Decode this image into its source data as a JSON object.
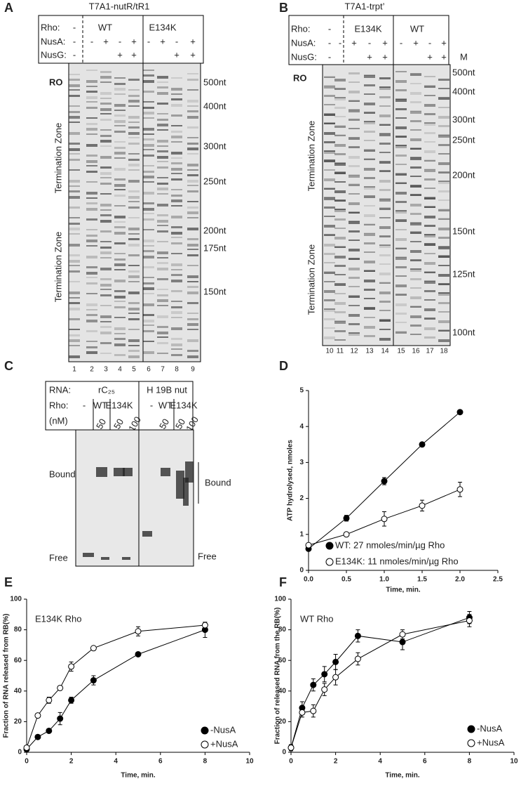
{
  "panels": {
    "A": {
      "letter": "A",
      "title": "T7A1-nutR/tR1",
      "row_labels": [
        "Rho:",
        "NusA:",
        "NusG:"
      ],
      "rho": [
        "-",
        "WT",
        "E134K"
      ],
      "nusa": [
        "-",
        "-",
        "+",
        "-",
        "+",
        "-",
        "+",
        "-",
        "+"
      ],
      "nusg": [
        "-",
        "+",
        "+",
        "+",
        "+"
      ],
      "ro": "RO",
      "zones": [
        "Termination Zone",
        "Termination Zone"
      ],
      "markers": [
        "500nt",
        "400nt",
        "300nt",
        "250nt",
        "200nt",
        "175nt",
        "150nt"
      ],
      "lanes": [
        "1",
        "2",
        "3",
        "4",
        "5",
        "6",
        "7",
        "8",
        "9"
      ]
    },
    "B": {
      "letter": "B",
      "title": "T7A1-trpt’",
      "row_labels": [
        "Rho:",
        "NusA:",
        "NusG:"
      ],
      "rho": [
        "-",
        "E134K",
        "WT"
      ],
      "nusa": [
        "-",
        "-",
        "+",
        "-",
        "+",
        "-",
        "+",
        "-",
        "+"
      ],
      "nusg": [
        "-",
        "+",
        "+",
        "+",
        "+"
      ],
      "m": "M",
      "ro": "RO",
      "zones": [
        "Termination Zone",
        "Termination Zone"
      ],
      "markers": [
        "500nt",
        "400nt",
        "300nt",
        "250nt",
        "200nt",
        "150nt",
        "125nt",
        "100nt"
      ],
      "lanes": [
        "10",
        "11",
        "12",
        "13",
        "14",
        "15",
        "16",
        "17",
        "18"
      ]
    },
    "C": {
      "letter": "C",
      "row_labels": [
        "RNA:",
        "Rho:",
        "(nM)"
      ],
      "rna": [
        "rC₂₅",
        "H 19B nut"
      ],
      "rho": [
        "-",
        "WT",
        "E134K",
        "-",
        "WT",
        "E134K"
      ],
      "conc": [
        "50",
        "50",
        "100",
        "50",
        "50",
        "100"
      ],
      "labels": [
        "Bound",
        "Free",
        "Bound",
        "Free"
      ]
    }
  },
  "chart_data": [
    {
      "type": "line",
      "panel": "D",
      "xlabel": "Time, min.",
      "ylabel": "ATP hydrolysed, nmoles",
      "xlim": [
        0,
        2.5
      ],
      "xticks": [
        {
          "value": 0,
          "label": "0.0"
        },
        0.5,
        {
          "value": 1,
          "label": "1.0"
        },
        1.5,
        {
          "value": 2,
          "label": "2.0"
        },
        2.5
      ],
      "ylim": [
        0,
        5
      ],
      "yticks": [
        0,
        1,
        2,
        3,
        4,
        5
      ],
      "series": [
        {
          "name": "WT:   27 nmoles/min/µg Rho",
          "color": "#000000",
          "marker": "filled",
          "x": [
            0,
            0.5,
            1,
            1.5,
            2
          ],
          "values": [
            0.6,
            1.45,
            2.48,
            3.5,
            4.4
          ],
          "errors": [
            0.05,
            0.08,
            0.1,
            0.05,
            0.05
          ]
        },
        {
          "name": "E134K: 11 nmoles/min/µg Rho",
          "color": "#000000",
          "marker": "open",
          "x": [
            0,
            0.5,
            1,
            1.5,
            2
          ],
          "values": [
            0.7,
            1.0,
            1.43,
            1.8,
            2.25
          ],
          "errors": [
            0.05,
            0.05,
            0.2,
            0.15,
            0.2
          ]
        }
      ]
    },
    {
      "type": "line",
      "panel": "E",
      "annotation": "E134K Rho",
      "xlabel": "Time, min.",
      "ylabel": "Fraction of RNA released from RB(%)",
      "xlim": [
        0,
        10
      ],
      "xticks": [
        0,
        2,
        4,
        6,
        8,
        10
      ],
      "ylim": [
        0,
        100
      ],
      "yticks": [
        0,
        20,
        40,
        60,
        80,
        100
      ],
      "series": [
        {
          "name": "-NusA",
          "color": "#000000",
          "marker": "filled",
          "x": [
            0,
            0.5,
            1,
            1.5,
            2,
            3,
            5,
            8
          ],
          "values": [
            2,
            10,
            14,
            22,
            34,
            47,
            64,
            80
          ],
          "errors": [
            1,
            1,
            1,
            4,
            2,
            3,
            1,
            5
          ]
        },
        {
          "name": "+NusA",
          "color": "#000000",
          "marker": "open",
          "x": [
            0,
            0.5,
            1,
            1.5,
            2,
            3,
            5,
            8
          ],
          "values": [
            3,
            24,
            34,
            42,
            56,
            68,
            79,
            83
          ],
          "errors": [
            1,
            1,
            2,
            1,
            3,
            1,
            3,
            1
          ]
        }
      ]
    },
    {
      "type": "line",
      "panel": "F",
      "annotation": "WT Rho",
      "xlabel": "Time, min.",
      "ylabel": "Fraction of released RNA from the RB(%)",
      "xlim": [
        0,
        10
      ],
      "xticks": [
        0,
        2,
        4,
        6,
        8,
        10
      ],
      "ylim": [
        0,
        100
      ],
      "yticks": [
        0,
        20,
        40,
        60,
        80,
        100
      ],
      "series": [
        {
          "name": "-NusA",
          "color": "#000000",
          "marker": "filled",
          "x": [
            0,
            0.5,
            1,
            1.5,
            2,
            3,
            5,
            8
          ],
          "values": [
            3,
            29,
            44,
            51,
            59,
            76,
            72,
            88
          ],
          "errors": [
            2,
            4,
            4,
            5,
            5,
            4,
            5,
            4
          ]
        },
        {
          "name": "+NusA",
          "color": "#000000",
          "marker": "open",
          "x": [
            0,
            0.5,
            1,
            1.5,
            2,
            3,
            5,
            8
          ],
          "values": [
            3,
            26,
            27,
            41,
            49,
            61,
            77,
            86
          ],
          "errors": [
            2,
            3,
            4,
            4,
            5,
            4,
            3,
            4
          ]
        }
      ]
    }
  ]
}
